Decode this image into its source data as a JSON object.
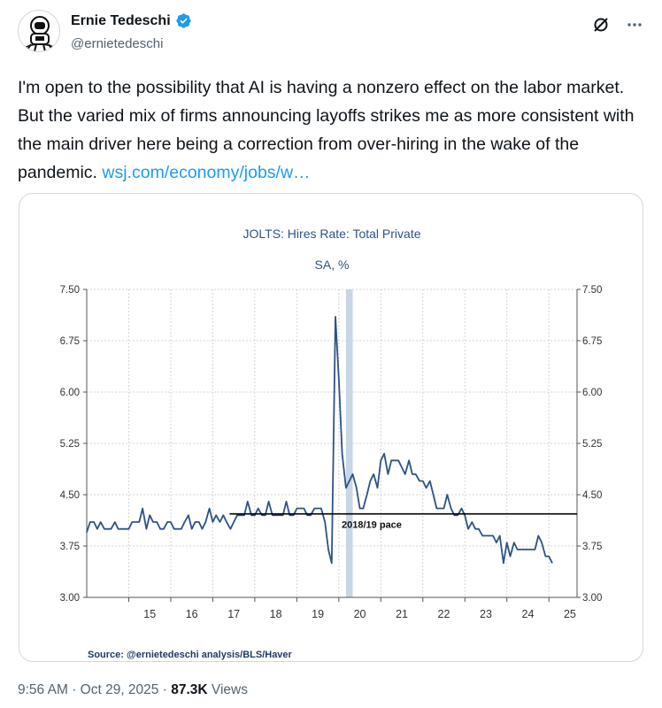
{
  "author": {
    "name": "Ernie Tedeschi",
    "handle": "@ernietedeschi",
    "verified": true,
    "avatar_icon": "astronaut-cartoon-icon"
  },
  "tweet": {
    "text": "I'm open to the possibility that AI is having a nonzero effect on the labor market. But the varied mix of firms announcing layoffs strikes me as more consistent with the main driver here being a correction from over-hiring in the wake of the pandemic. ",
    "link": "wsj.com/economy/jobs/w…"
  },
  "meta": {
    "time": "9:56 AM",
    "date": "Oct 29, 2025",
    "views_count": "87.3K",
    "views_label": "Views"
  },
  "colors": {
    "line": "#2f5286",
    "recession": "#c8d6e5",
    "accent": "#1d9bf0",
    "verified": "#1d9bf0"
  },
  "chart_data": {
    "type": "line",
    "title": "JOLTS: Hires Rate: Total Private",
    "subtitle": "SA, %",
    "source": "Source:  @ernietedeschi analysis/BLS/Haver",
    "annotation": "2018/19 pace",
    "reference_level": 4.22,
    "reference_start_year": 2017.4,
    "ylim": [
      3.0,
      7.5
    ],
    "y_ticks": [
      "7.50",
      "6.75",
      "6.00",
      "5.25",
      "4.50",
      "3.75",
      "3.00"
    ],
    "x_tick_labels": [
      "15",
      "16",
      "17",
      "18",
      "19",
      "20",
      "21",
      "22",
      "23",
      "24",
      "25"
    ],
    "xlim": [
      2014,
      2025.67
    ],
    "recession": [
      2020.17,
      2020.33
    ],
    "series": [
      {
        "values": [
          [
            2014.0,
            3.95
          ],
          [
            2014.08,
            4.1
          ],
          [
            2014.17,
            4.1
          ],
          [
            2014.25,
            4.0
          ],
          [
            2014.33,
            4.1
          ],
          [
            2014.42,
            4.0
          ],
          [
            2014.5,
            4.0
          ],
          [
            2014.58,
            4.0
          ],
          [
            2014.67,
            4.1
          ],
          [
            2014.75,
            4.0
          ],
          [
            2014.83,
            4.0
          ],
          [
            2014.92,
            4.0
          ],
          [
            2015.0,
            4.0
          ],
          [
            2015.08,
            4.1
          ],
          [
            2015.17,
            4.1
          ],
          [
            2015.25,
            4.1
          ],
          [
            2015.33,
            4.3
          ],
          [
            2015.42,
            4.0
          ],
          [
            2015.5,
            4.2
          ],
          [
            2015.58,
            4.1
          ],
          [
            2015.67,
            4.1
          ],
          [
            2015.75,
            4.0
          ],
          [
            2015.83,
            4.0
          ],
          [
            2015.92,
            4.1
          ],
          [
            2016.0,
            4.1
          ],
          [
            2016.08,
            4.0
          ],
          [
            2016.17,
            4.0
          ],
          [
            2016.25,
            4.0
          ],
          [
            2016.33,
            4.1
          ],
          [
            2016.42,
            4.2
          ],
          [
            2016.5,
            4.0
          ],
          [
            2016.58,
            4.1
          ],
          [
            2016.67,
            4.1
          ],
          [
            2016.75,
            4.0
          ],
          [
            2016.83,
            4.1
          ],
          [
            2016.92,
            4.3
          ],
          [
            2017.0,
            4.1
          ],
          [
            2017.08,
            4.2
          ],
          [
            2017.17,
            4.1
          ],
          [
            2017.25,
            4.2
          ],
          [
            2017.33,
            4.1
          ],
          [
            2017.42,
            4.0
          ],
          [
            2017.5,
            4.1
          ],
          [
            2017.58,
            4.2
          ],
          [
            2017.67,
            4.2
          ],
          [
            2017.75,
            4.2
          ],
          [
            2017.83,
            4.4
          ],
          [
            2017.92,
            4.2
          ],
          [
            2018.0,
            4.2
          ],
          [
            2018.08,
            4.3
          ],
          [
            2018.17,
            4.2
          ],
          [
            2018.25,
            4.2
          ],
          [
            2018.33,
            4.4
          ],
          [
            2018.42,
            4.2
          ],
          [
            2018.5,
            4.2
          ],
          [
            2018.58,
            4.2
          ],
          [
            2018.67,
            4.2
          ],
          [
            2018.75,
            4.4
          ],
          [
            2018.83,
            4.2
          ],
          [
            2018.92,
            4.2
          ],
          [
            2019.0,
            4.3
          ],
          [
            2019.08,
            4.3
          ],
          [
            2019.17,
            4.3
          ],
          [
            2019.25,
            4.2
          ],
          [
            2019.33,
            4.2
          ],
          [
            2019.42,
            4.3
          ],
          [
            2019.5,
            4.3
          ],
          [
            2019.58,
            4.3
          ],
          [
            2019.67,
            4.1
          ],
          [
            2019.75,
            3.7
          ],
          [
            2019.83,
            3.5
          ],
          [
            2019.92,
            7.1
          ],
          [
            2020.0,
            6.2
          ],
          [
            2020.08,
            5.1
          ],
          [
            2020.17,
            4.6
          ],
          [
            2020.25,
            4.7
          ],
          [
            2020.33,
            4.8
          ],
          [
            2020.42,
            4.6
          ],
          [
            2020.5,
            4.3
          ],
          [
            2020.58,
            4.3
          ],
          [
            2020.67,
            4.5
          ],
          [
            2020.75,
            4.7
          ],
          [
            2020.83,
            4.8
          ],
          [
            2020.92,
            4.6
          ],
          [
            2021.0,
            5.0
          ],
          [
            2021.08,
            5.1
          ],
          [
            2021.17,
            4.8
          ],
          [
            2021.25,
            5.0
          ],
          [
            2021.33,
            5.0
          ],
          [
            2021.42,
            5.0
          ],
          [
            2021.5,
            4.9
          ],
          [
            2021.58,
            4.8
          ],
          [
            2021.67,
            5.0
          ],
          [
            2021.75,
            4.8
          ],
          [
            2021.83,
            4.8
          ],
          [
            2021.92,
            4.7
          ],
          [
            2022.0,
            4.7
          ],
          [
            2022.08,
            4.6
          ],
          [
            2022.17,
            4.7
          ],
          [
            2022.25,
            4.5
          ],
          [
            2022.33,
            4.3
          ],
          [
            2022.42,
            4.3
          ],
          [
            2022.5,
            4.3
          ],
          [
            2022.58,
            4.5
          ],
          [
            2022.67,
            4.3
          ],
          [
            2022.75,
            4.2
          ],
          [
            2022.83,
            4.2
          ],
          [
            2022.92,
            4.3
          ],
          [
            2023.0,
            4.2
          ],
          [
            2023.08,
            4.0
          ],
          [
            2023.17,
            4.1
          ],
          [
            2023.25,
            4.0
          ],
          [
            2023.33,
            4.0
          ],
          [
            2023.42,
            3.9
          ],
          [
            2023.5,
            3.9
          ],
          [
            2023.58,
            3.9
          ],
          [
            2023.67,
            3.9
          ],
          [
            2023.75,
            3.8
          ],
          [
            2023.83,
            3.9
          ],
          [
            2023.92,
            3.5
          ],
          [
            2024.0,
            3.8
          ],
          [
            2024.08,
            3.6
          ],
          [
            2024.17,
            3.8
          ],
          [
            2024.25,
            3.7
          ],
          [
            2024.33,
            3.7
          ],
          [
            2024.42,
            3.7
          ],
          [
            2024.5,
            3.7
          ],
          [
            2024.58,
            3.7
          ],
          [
            2024.67,
            3.7
          ],
          [
            2024.75,
            3.9
          ],
          [
            2024.83,
            3.8
          ],
          [
            2024.92,
            3.6
          ],
          [
            2025.0,
            3.6
          ],
          [
            2025.08,
            3.5
          ]
        ]
      }
    ]
  }
}
